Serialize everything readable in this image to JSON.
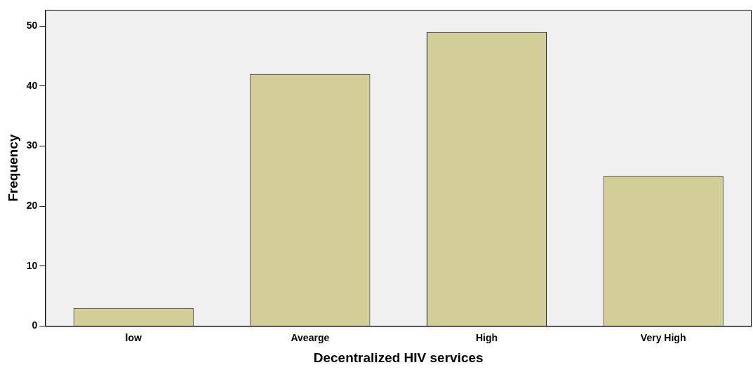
{
  "chart_data": {
    "type": "bar",
    "xlabel": "Decentralized HIV services",
    "ylabel": "Frequency",
    "categories": [
      "low",
      "Avearge",
      "High",
      "Very High"
    ],
    "values": [
      3,
      42,
      49,
      25
    ],
    "color": "#d3ce97",
    "ylim": [
      0,
      52.7
    ],
    "yticks": [
      0,
      10,
      20,
      30,
      40,
      50
    ],
    "grid": false,
    "legend": false
  }
}
